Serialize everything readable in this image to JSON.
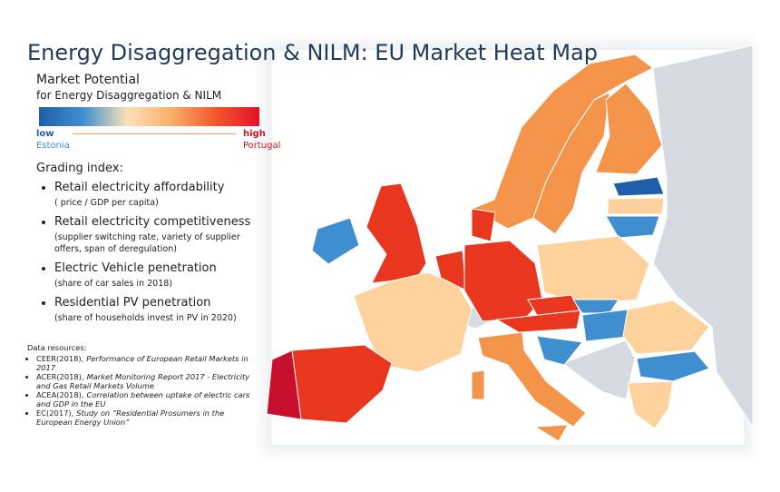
{
  "header": {
    "title": "Energy Disaggregation & NILM: EU Market Heat Map"
  },
  "legend": {
    "title": "Market Potential",
    "subtitle": "for Energy Disaggregation & NILM",
    "low": "low",
    "low_country": "Estonia",
    "high": "high",
    "high_country": "Portugal"
  },
  "grading": {
    "heading": "Grading index:",
    "items": [
      {
        "label": "Retail electricity affordability",
        "note": "( price / GDP per capita)"
      },
      {
        "label": "Retail electricity competitiveness",
        "note": "(supplier switching rate, variety of supplier offers, span of deregulation)"
      },
      {
        "label": "Electric Vehicle penetration",
        "note": "(share of car sales in 2018)"
      },
      {
        "label": "Residential PV penetration",
        "note": "(share of households invest in PV in 2020)"
      }
    ]
  },
  "resources": {
    "heading": "Data resources:",
    "items": [
      {
        "source": "CEER(2018),",
        "title": "Performance of European Retail Markets in 2017"
      },
      {
        "source": "ACER(2018),",
        "title": "Market Monitoring Report 2017 - Electricity and Gas Retail Markets Volume"
      },
      {
        "source": "ACEA(2018),",
        "title": "Correlation between uptake of electric cars and GDP in the EU"
      },
      {
        "source": "EC(2017),",
        "title": "Study on “Residential Prosumers in the European Energy Union”"
      }
    ]
  }
}
